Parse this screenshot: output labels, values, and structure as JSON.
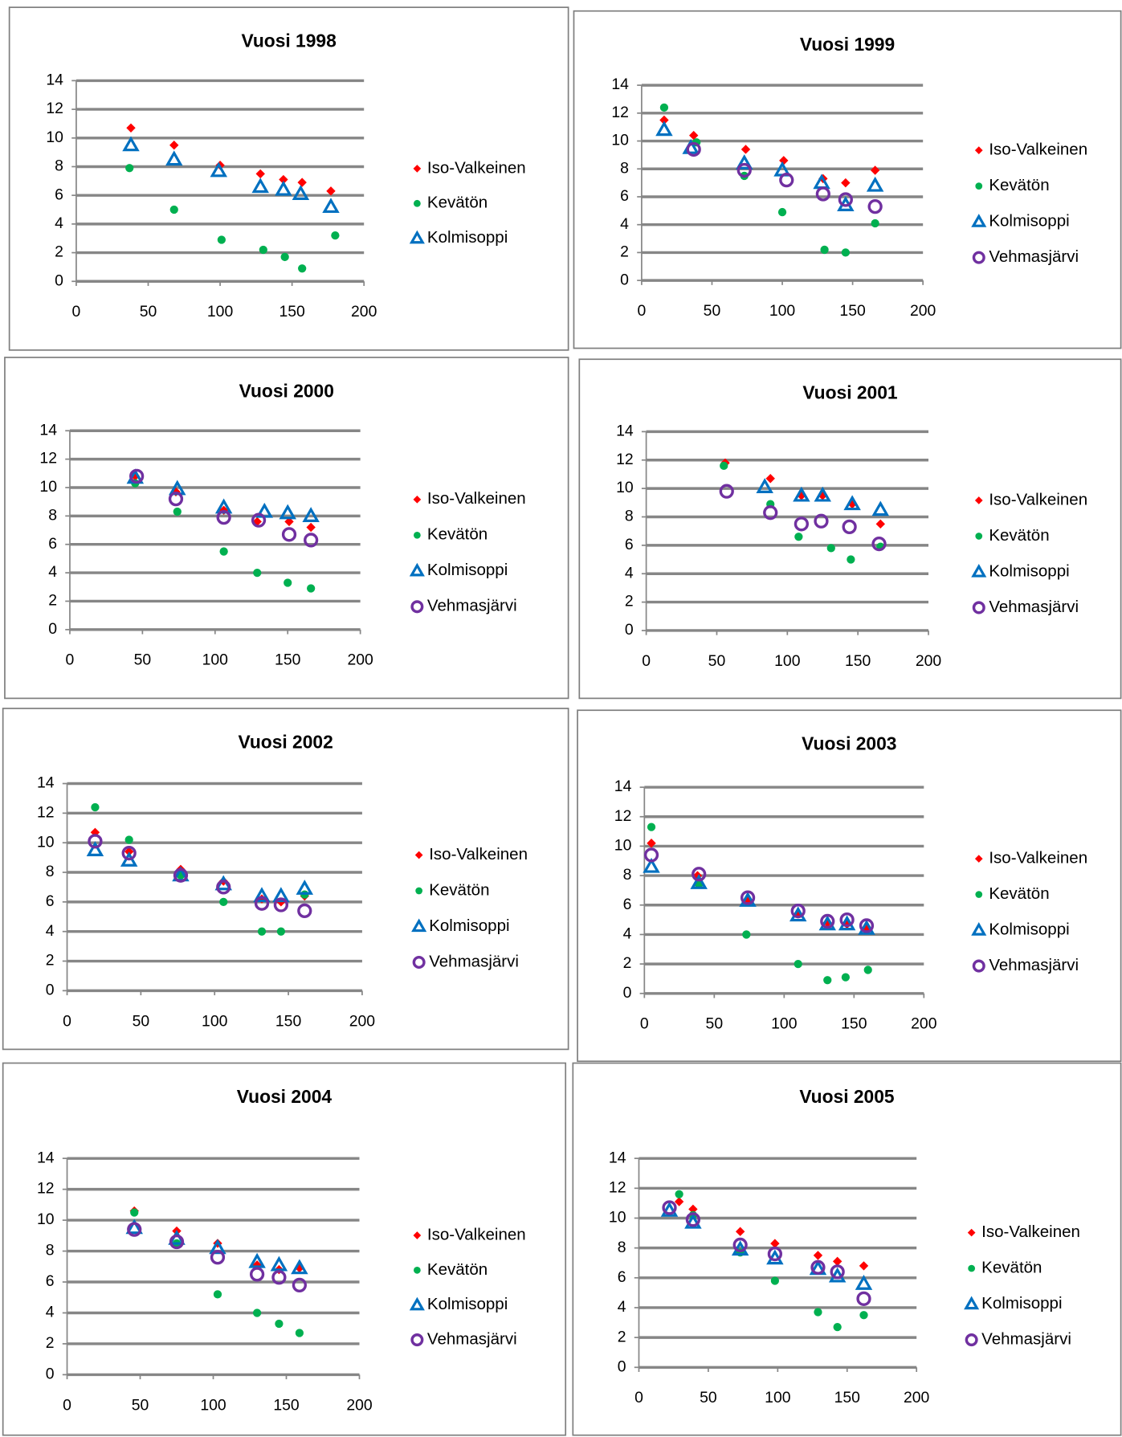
{
  "chart_data": [
    {
      "type": "scatter",
      "title": "Vuosi 1998",
      "xlim": [
        0,
        200
      ],
      "xticks": [
        0,
        50,
        100,
        150,
        200
      ],
      "ylim": [
        0,
        14
      ],
      "yticks": [
        0,
        2,
        4,
        6,
        8,
        10,
        12,
        14
      ],
      "grid": true,
      "legend": "right",
      "series": [
        {
          "name": "Iso-Valkeinen",
          "color": "#ff0000",
          "marker": "diamond",
          "x": [
            38,
            68,
            100,
            128,
            144,
            157,
            177
          ],
          "values": [
            10.7,
            9.5,
            8.1,
            7.5,
            7.1,
            6.9,
            6.3
          ]
        },
        {
          "name": "Kevätön",
          "color": "#00b050",
          "marker": "circle",
          "x": [
            37,
            68,
            101,
            130,
            145,
            157,
            180
          ],
          "values": [
            7.9,
            5.0,
            2.9,
            2.2,
            1.7,
            0.9,
            3.2
          ]
        },
        {
          "name": "Kolmisoppi",
          "color": "#0070c0",
          "marker": "triangle",
          "x": [
            38,
            68,
            99,
            128,
            144,
            156,
            177
          ],
          "values": [
            9.5,
            8.5,
            7.7,
            6.6,
            6.4,
            6.1,
            5.2
          ]
        }
      ]
    },
    {
      "type": "scatter",
      "title": "Vuosi 1999",
      "xlim": [
        0,
        200
      ],
      "xticks": [
        0,
        50,
        100,
        150,
        200
      ],
      "ylim": [
        0,
        14
      ],
      "yticks": [
        0,
        2,
        4,
        6,
        8,
        10,
        12,
        14
      ],
      "grid": true,
      "legend": "right",
      "series": [
        {
          "name": "Iso-Valkeinen",
          "color": "#ff0000",
          "marker": "diamond",
          "x": [
            16,
            37,
            74,
            101,
            129,
            145,
            166
          ],
          "values": [
            11.5,
            10.4,
            9.4,
            8.6,
            7.3,
            7.0,
            7.9
          ]
        },
        {
          "name": "Kevätön",
          "color": "#00b050",
          "marker": "circle",
          "x": [
            16,
            39,
            73,
            100,
            130,
            145,
            166
          ],
          "values": [
            12.4,
            9.9,
            7.5,
            4.9,
            2.2,
            2.0,
            4.1
          ]
        },
        {
          "name": "Kolmisoppi",
          "color": "#0070c0",
          "marker": "triangle",
          "x": [
            16,
            35,
            73,
            100,
            128,
            145,
            166
          ],
          "values": [
            10.8,
            9.5,
            8.4,
            7.9,
            7.0,
            5.4,
            6.8
          ]
        },
        {
          "name": "Vehmasjärvi",
          "color": "#7030a0",
          "marker": "ring",
          "x": [
            37,
            73,
            103,
            129,
            145,
            166
          ],
          "values": [
            9.4,
            7.9,
            7.2,
            6.2,
            5.8,
            5.3
          ]
        }
      ]
    },
    {
      "type": "scatter",
      "title": "Vuosi 2000",
      "xlim": [
        0,
        200
      ],
      "xticks": [
        0,
        50,
        100,
        150,
        200
      ],
      "ylim": [
        0,
        14
      ],
      "yticks": [
        0,
        2,
        4,
        6,
        8,
        10,
        12,
        14
      ],
      "grid": true,
      "legend": "right",
      "series": [
        {
          "name": "Iso-Valkeinen",
          "color": "#ff0000",
          "marker": "diamond",
          "x": [
            45,
            73,
            106,
            129,
            151,
            166
          ],
          "values": [
            10.8,
            9.7,
            8.4,
            7.6,
            7.6,
            7.2
          ]
        },
        {
          "name": "Kevätön",
          "color": "#00b050",
          "marker": "circle",
          "x": [
            45,
            74,
            106,
            129,
            150,
            166
          ],
          "values": [
            10.3,
            8.3,
            5.5,
            4.0,
            3.3,
            2.9
          ]
        },
        {
          "name": "Kolmisoppi",
          "color": "#0070c0",
          "marker": "triangle",
          "x": [
            45,
            74,
            106,
            134,
            150,
            166
          ],
          "values": [
            10.7,
            9.9,
            8.6,
            8.3,
            8.2,
            8.0
          ]
        },
        {
          "name": "Vehmasjärvi",
          "color": "#7030a0",
          "marker": "ring",
          "x": [
            46,
            73,
            106,
            130,
            151,
            166
          ],
          "values": [
            10.8,
            9.2,
            7.9,
            7.7,
            6.7,
            6.3
          ]
        }
      ]
    },
    {
      "type": "scatter",
      "title": "Vuosi 2001",
      "xlim": [
        0,
        200
      ],
      "xticks": [
        0,
        50,
        100,
        150,
        200
      ],
      "ylim": [
        0,
        14
      ],
      "yticks": [
        0,
        2,
        4,
        6,
        8,
        10,
        12,
        14
      ],
      "grid": true,
      "legend": "right",
      "series": [
        {
          "name": "Iso-Valkeinen",
          "color": "#ff0000",
          "marker": "diamond",
          "x": [
            56,
            88,
            110,
            125,
            146,
            166
          ],
          "values": [
            11.8,
            10.7,
            9.5,
            9.5,
            8.9,
            7.5
          ]
        },
        {
          "name": "Kevätön",
          "color": "#00b050",
          "marker": "circle",
          "x": [
            55,
            88,
            108,
            131,
            145,
            166
          ],
          "values": [
            11.6,
            8.9,
            6.6,
            5.8,
            5.0,
            5.9
          ]
        },
        {
          "name": "Kolmisoppi",
          "color": "#0070c0",
          "marker": "triangle",
          "x": [
            84,
            110,
            125,
            146,
            166
          ],
          "values": [
            10.1,
            9.5,
            9.5,
            8.9,
            8.5
          ]
        },
        {
          "name": "Vehmasjärvi",
          "color": "#7030a0",
          "marker": "ring",
          "x": [
            57,
            88,
            110,
            124,
            144,
            165
          ],
          "values": [
            9.8,
            8.3,
            7.5,
            7.7,
            7.3,
            6.1
          ]
        }
      ]
    },
    {
      "type": "scatter",
      "title": "Vuosi 2002",
      "xlim": [
        0,
        200
      ],
      "xticks": [
        0,
        50,
        100,
        150,
        200
      ],
      "ylim": [
        0,
        14
      ],
      "yticks": [
        0,
        2,
        4,
        6,
        8,
        10,
        12,
        14
      ],
      "grid": true,
      "legend": "right",
      "series": [
        {
          "name": "Iso-Valkeinen",
          "color": "#ff0000",
          "marker": "diamond",
          "x": [
            19,
            42,
            77,
            106,
            132,
            145,
            161
          ],
          "values": [
            10.7,
            9.4,
            8.2,
            7.4,
            6.2,
            6.0,
            6.4
          ]
        },
        {
          "name": "Kevätön",
          "color": "#00b050",
          "marker": "circle",
          "x": [
            19,
            42,
            77,
            106,
            132,
            145,
            161
          ],
          "values": [
            12.4,
            10.2,
            7.8,
            6.0,
            4.0,
            4.0,
            6.5
          ]
        },
        {
          "name": "Kolmisoppi",
          "color": "#0070c0",
          "marker": "triangle",
          "x": [
            19,
            42,
            77,
            106,
            132,
            145,
            161
          ],
          "values": [
            9.5,
            8.8,
            7.8,
            7.2,
            6.4,
            6.4,
            6.9
          ]
        },
        {
          "name": "Vehmasjärvi",
          "color": "#7030a0",
          "marker": "ring",
          "x": [
            19,
            42,
            77,
            106,
            132,
            145,
            161
          ],
          "values": [
            10.1,
            9.3,
            7.8,
            7.0,
            5.9,
            5.8,
            5.4
          ]
        }
      ]
    },
    {
      "type": "scatter",
      "title": "Vuosi 2003",
      "xlim": [
        0,
        200
      ],
      "xticks": [
        0,
        50,
        100,
        150,
        200
      ],
      "ylim": [
        0,
        14
      ],
      "yticks": [
        0,
        2,
        4,
        6,
        8,
        10,
        12,
        14
      ],
      "grid": true,
      "legend": "right",
      "series": [
        {
          "name": "Iso-Valkeinen",
          "color": "#ff0000",
          "marker": "diamond",
          "x": [
            5,
            38,
            74,
            110,
            131,
            145,
            159
          ],
          "values": [
            10.2,
            8.0,
            6.3,
            5.4,
            4.8,
            4.7,
            4.4
          ]
        },
        {
          "name": "Kevätön",
          "color": "#00b050",
          "marker": "circle",
          "x": [
            5,
            39,
            73,
            110,
            131,
            144,
            160
          ],
          "values": [
            11.3,
            7.4,
            4.0,
            2.0,
            0.9,
            1.1,
            1.6
          ]
        },
        {
          "name": "Kolmisoppi",
          "color": "#0070c0",
          "marker": "triangle",
          "x": [
            5,
            39,
            74,
            110,
            131,
            145,
            159
          ],
          "values": [
            8.6,
            7.5,
            6.3,
            5.3,
            4.7,
            4.7,
            4.4
          ]
        },
        {
          "name": "Vehmasjärvi",
          "color": "#7030a0",
          "marker": "ring",
          "x": [
            5,
            39,
            74,
            110,
            131,
            145,
            159
          ],
          "values": [
            9.4,
            8.1,
            6.5,
            5.6,
            4.9,
            5.0,
            4.6
          ]
        }
      ]
    },
    {
      "type": "scatter",
      "title": "Vuosi 2004",
      "xlim": [
        0,
        200
      ],
      "xticks": [
        0,
        50,
        100,
        150,
        200
      ],
      "ylim": [
        0,
        14
      ],
      "yticks": [
        0,
        2,
        4,
        6,
        8,
        10,
        12,
        14
      ],
      "grid": true,
      "legend": "right",
      "series": [
        {
          "name": "Iso-Valkeinen",
          "color": "#ff0000",
          "marker": "diamond",
          "x": [
            46,
            75,
            103,
            130,
            145,
            159
          ],
          "values": [
            10.6,
            9.3,
            8.5,
            7.1,
            6.8,
            6.9
          ]
        },
        {
          "name": "Kevätön",
          "color": "#00b050",
          "marker": "circle",
          "x": [
            46,
            75,
            103,
            130,
            145,
            159
          ],
          "values": [
            10.5,
            8.5,
            5.2,
            4.0,
            3.3,
            2.7
          ]
        },
        {
          "name": "Kolmisoppi",
          "color": "#0070c0",
          "marker": "triangle",
          "x": [
            46,
            75,
            103,
            130,
            145,
            159
          ],
          "values": [
            9.5,
            8.8,
            8.2,
            7.3,
            7.1,
            6.9
          ]
        },
        {
          "name": "Vehmasjärvi",
          "color": "#7030a0",
          "marker": "ring",
          "x": [
            46,
            75,
            103,
            130,
            145,
            159
          ],
          "values": [
            9.4,
            8.6,
            7.6,
            6.5,
            6.3,
            5.8
          ]
        }
      ]
    },
    {
      "type": "scatter",
      "title": "Vuosi 2005",
      "xlim": [
        0,
        200
      ],
      "xticks": [
        0,
        50,
        100,
        150,
        200
      ],
      "ylim": [
        0,
        14
      ],
      "yticks": [
        0,
        2,
        4,
        6,
        8,
        10,
        12,
        14
      ],
      "grid": true,
      "legend": "right",
      "series": [
        {
          "name": "Iso-Valkeinen",
          "color": "#ff0000",
          "marker": "diamond",
          "x": [
            29,
            39,
            73,
            98,
            129,
            143,
            162
          ],
          "values": [
            11.1,
            10.6,
            9.1,
            8.3,
            7.5,
            7.1,
            6.8
          ]
        },
        {
          "name": "Kevätön",
          "color": "#00b050",
          "marker": "circle",
          "x": [
            29,
            39,
            73,
            98,
            129,
            143,
            162
          ],
          "values": [
            11.6,
            10.2,
            7.7,
            5.8,
            3.7,
            2.7,
            3.5
          ]
        },
        {
          "name": "Kolmisoppi",
          "color": "#0070c0",
          "marker": "triangle",
          "x": [
            22,
            39,
            73,
            98,
            129,
            143,
            162
          ],
          "values": [
            10.5,
            9.7,
            7.9,
            7.3,
            6.6,
            6.1,
            5.6
          ]
        },
        {
          "name": "Vehmasjärvi",
          "color": "#7030a0",
          "marker": "ring",
          "x": [
            22,
            39,
            73,
            98,
            129,
            143,
            162
          ],
          "values": [
            10.7,
            9.9,
            8.2,
            7.6,
            6.7,
            6.4,
            4.6
          ]
        }
      ]
    }
  ]
}
